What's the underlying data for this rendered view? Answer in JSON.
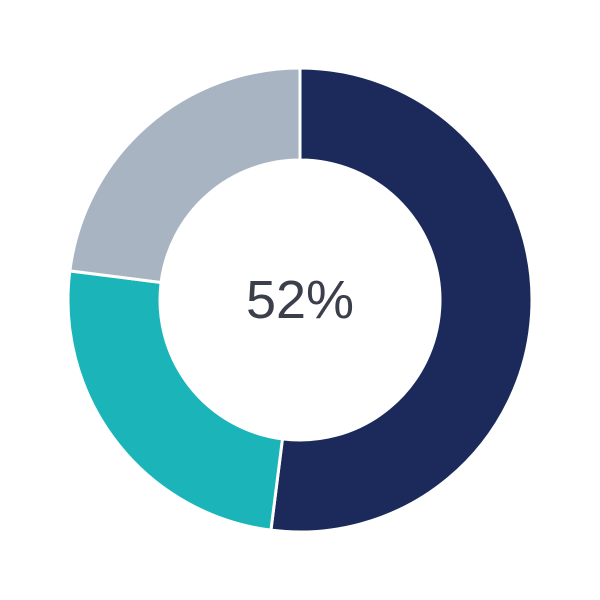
{
  "chart_data": {
    "type": "pie",
    "variant": "donut",
    "center_label": "52%",
    "start": "top",
    "direction": "clockwise",
    "slices": [
      {
        "value": 52,
        "color": "#1b2a5a"
      },
      {
        "value": 25,
        "color": "#1bb5b9"
      },
      {
        "value": 23,
        "color": "#a9b4c3"
      }
    ],
    "separator_color": "#ffffff"
  }
}
